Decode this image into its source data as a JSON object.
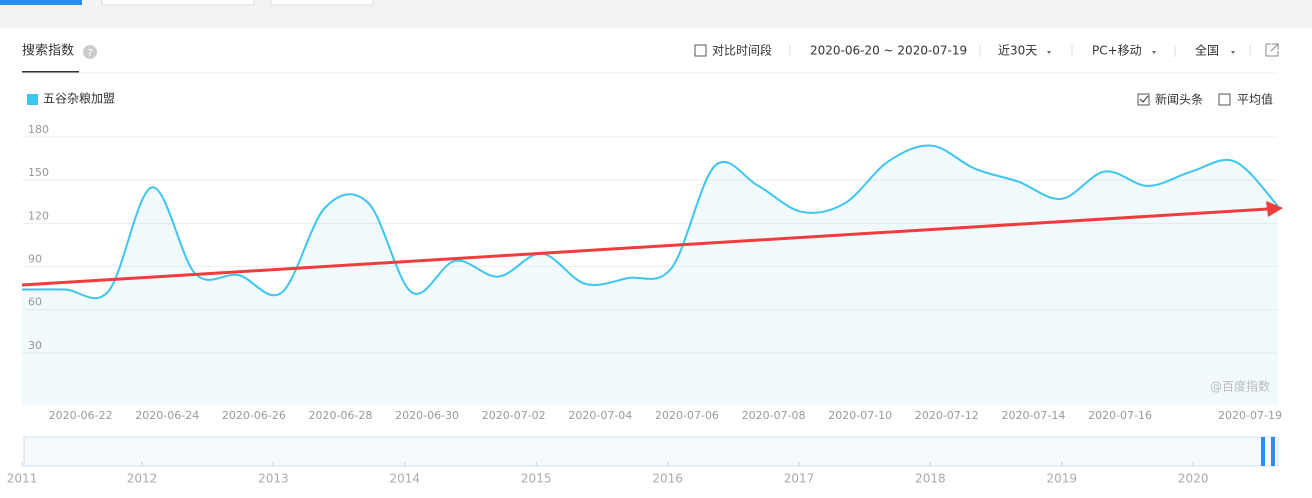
{
  "header": {
    "title": "搜索指数",
    "compare": "对比时间段",
    "range": "2020-06-20 ~ 2020-07-19",
    "period": "近30天",
    "device": "PC+移动",
    "region": "全国"
  },
  "options": {
    "news": "新闻头条",
    "average": "平均值"
  },
  "watermark": "@百度指数",
  "timeline": {
    "years": [
      "2011",
      "2012",
      "2013",
      "2014",
      "2015",
      "2016",
      "2017",
      "2018",
      "2019",
      "2020"
    ]
  },
  "chart_data": {
    "type": "line",
    "categories": [
      null,
      null,
      "2020-06-22",
      null,
      "2020-06-24",
      null,
      "2020-06-26",
      null,
      "2020-06-28",
      null,
      "2020-06-30",
      null,
      "2020-07-02",
      null,
      "2020-07-04",
      null,
      "2020-07-06",
      null,
      "2020-07-08",
      null,
      "2020-07-10",
      null,
      "2020-07-12",
      null,
      "2020-07-14",
      null,
      "2020-07-16",
      null,
      null,
      "2020-07-19"
    ],
    "series": [
      {
        "name": "五谷杂粮加盟",
        "color": "#3ec5ef",
        "values": [
          74,
          74,
          73,
          145,
          85,
          84,
          72,
          131,
          134,
          72,
          94,
          83,
          99,
          78,
          82,
          89,
          160,
          146,
          128,
          134,
          163,
          174,
          158,
          149,
          137,
          156,
          146,
          156,
          163,
          132
        ]
      }
    ],
    "ylim": [
      0,
      180
    ],
    "yticks": [
      30,
      60,
      90,
      120,
      150,
      180
    ],
    "grid": true
  }
}
